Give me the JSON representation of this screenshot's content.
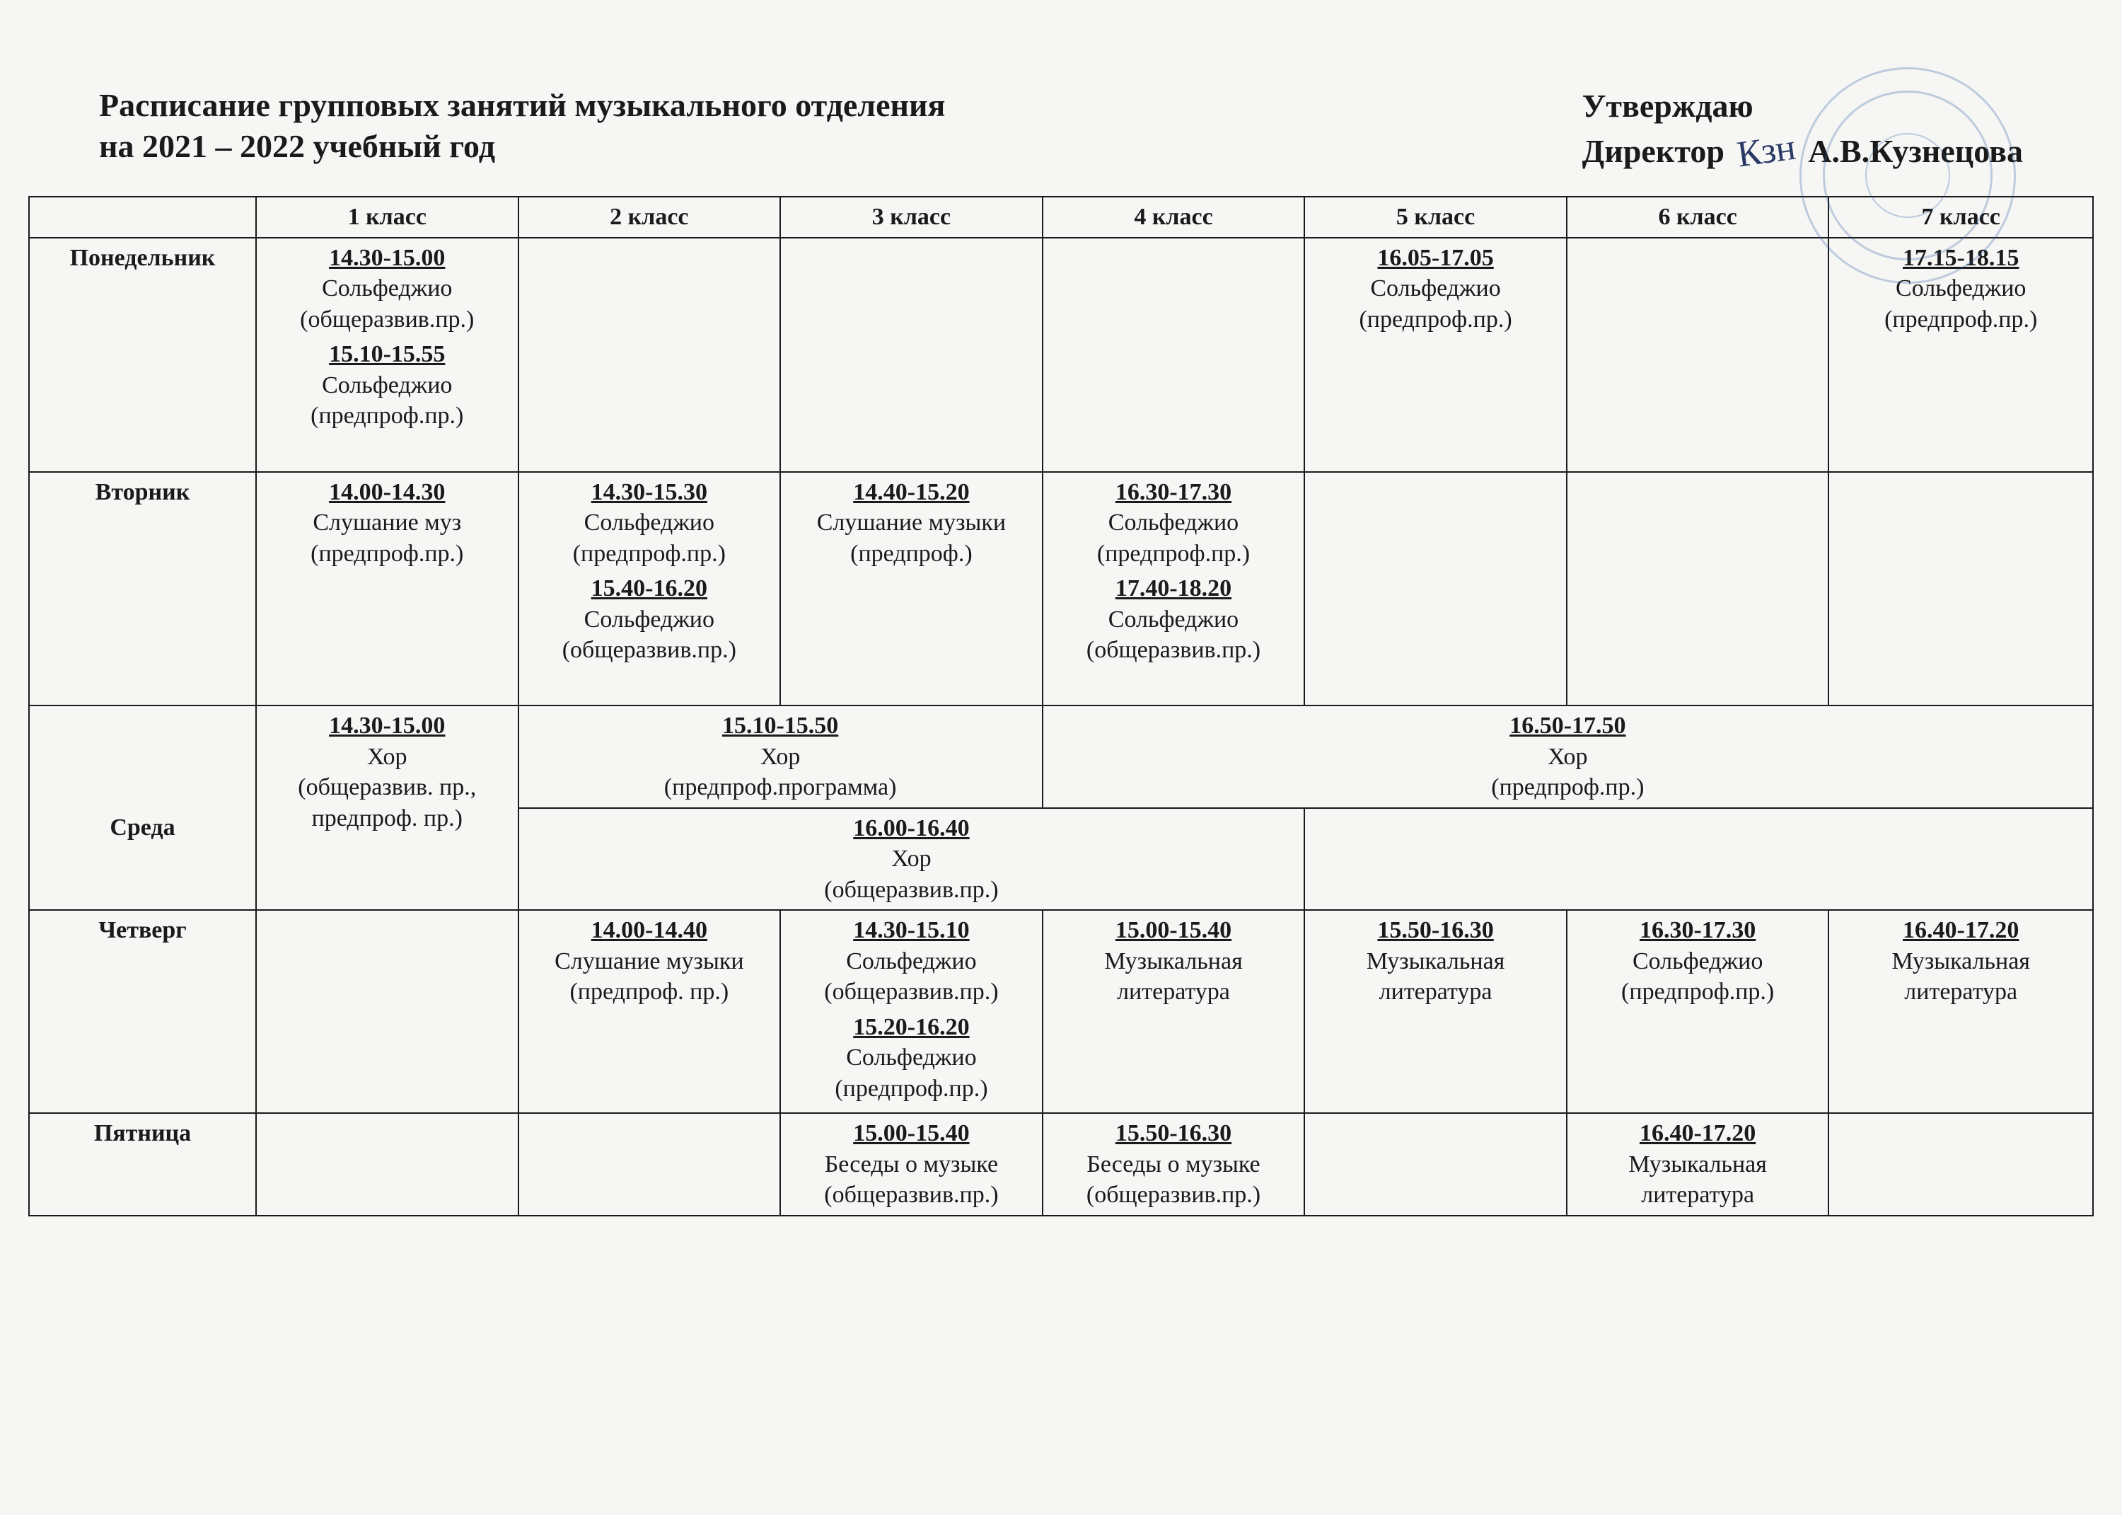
{
  "header": {
    "title_line1": "Расписание  групповых занятий  музыкального  отделения",
    "title_line2": "на 2021 – 2022 учебный  год",
    "approve": "Утверждаю",
    "director_label": "Директор",
    "director_name": "А.В.Кузнецова"
  },
  "columns": {
    "day": "",
    "k1": "1 класс",
    "k2": "2 класс",
    "k3": "3 класс",
    "k4": "4 класс",
    "k5": "5 класс",
    "k6": "6 класс",
    "k7": "7 класс"
  },
  "days": {
    "mon": "Понедельник",
    "tue": "Вторник",
    "wed": "Среда",
    "thu": "Четверг",
    "fri": "Пятница"
  },
  "mon": {
    "k1a_time": "14.30-15.00",
    "k1a_s1": "Сольфеджио",
    "k1a_s2": "(общеразвив.пр.)",
    "k1b_time": "15.10-15.55",
    "k1b_s1": "Сольфеджио",
    "k1b_s2": "(предпроф.пр.)",
    "k5_time": "16.05-17.05",
    "k5_s1": "Сольфеджио",
    "k5_s2": "(предпроф.пр.)",
    "k7_time": "17.15-18.15",
    "k7_s1": "Сольфеджио",
    "k7_s2": "(предпроф.пр.)"
  },
  "tue": {
    "k1_time": "14.00-14.30",
    "k1_s1": "Слушание муз",
    "k1_s2": "(предпроф.пр.)",
    "k2a_time": "14.30-15.30",
    "k2a_s1": "Сольфеджио",
    "k2a_s2": "(предпроф.пр.)",
    "k2b_time": "15.40-16.20",
    "k2b_s1": "Сольфеджио",
    "k2b_s2": "(общеразвив.пр.)",
    "k3_time": "14.40-15.20",
    "k3_s1": "Слушание музыки",
    "k3_s2": "(предпроф.)",
    "k4a_time": "16.30-17.30",
    "k4a_s1": "Сольфеджио",
    "k4a_s2": "(предпроф.пр.)",
    "k4b_time": "17.40-18.20",
    "k4b_s1": "Сольфеджио",
    "k4b_s2": "(общеразвив.пр.)"
  },
  "wed": {
    "k1_time": "14.30-15.00",
    "k1_s1": "Хор",
    "k1_s2": "(общеразвив. пр.,",
    "k1_s3": "предпроф. пр.)",
    "k23_time": "15.10-15.50",
    "k23_s1": "Хор",
    "k23_s2": "(предпроф.программа)",
    "k457_time": "16.50-17.50",
    "k457_s1": "Хор",
    "k457_s2": "(предпроф.пр.)",
    "k234_time": "16.00-16.40",
    "k234_s1": "Хор",
    "k234_s2": "(общеразвив.пр.)"
  },
  "thu": {
    "k2_time": "14.00-14.40",
    "k2_s1": "Слушание музыки",
    "k2_s2": "(предпроф. пр.)",
    "k3a_time": "14.30-15.10",
    "k3a_s1": "Сольфеджио",
    "k3a_s2": "(общеразвив.пр.)",
    "k3b_time": "15.20-16.20",
    "k3b_s1": "Сольфеджио",
    "k3b_s2": "(предпроф.пр.)",
    "k4_time": "15.00-15.40",
    "k4_s1": "Музыкальная",
    "k4_s2": "литература",
    "k5_time": "15.50-16.30",
    "k5_s1": "Музыкальная",
    "k5_s2": "литература",
    "k6_time": "16.30-17.30",
    "k6_s1": "Сольфеджио",
    "k6_s2": "(предпроф.пр.)",
    "k7_time": "16.40-17.20",
    "k7_s1": "Музыкальная",
    "k7_s2": "литература"
  },
  "fri": {
    "k3_time": "15.00-15.40",
    "k3_s1": "Беседы о музыке",
    "k3_s2": "(общеразвив.пр.)",
    "k4_time": "15.50-16.30",
    "k4_s1": "Беседы о музыке",
    "k4_s2": "(общеразвив.пр.)",
    "k6_time": "16.40-17.20",
    "k6_s1": "Музыкальная",
    "k6_s2": "литература"
  },
  "style": {
    "font_family": "Times New Roman",
    "header_font_size_pt": 24,
    "body_font_size_pt": 18,
    "border_color": "#1a1a1a",
    "background_color": "#f6f6f4",
    "stamp_color": "#2e5fa3",
    "stamp_opacity": 0.28
  }
}
